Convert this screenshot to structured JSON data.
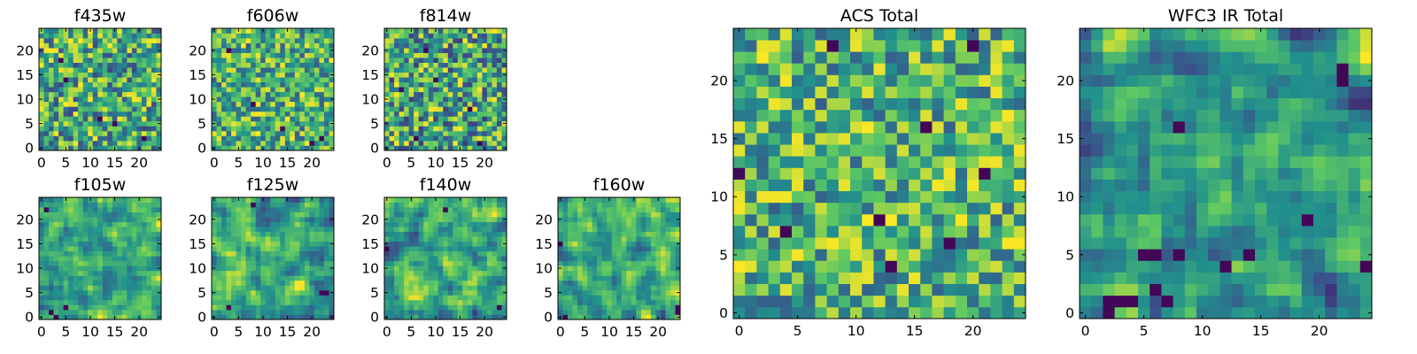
{
  "figure": {
    "colormap_stops": [
      "#440154",
      "#3b528b",
      "#21908d",
      "#5dc863",
      "#fde725"
    ],
    "frame_color": "#000000"
  },
  "chart_data": [
    {
      "type": "heatmap",
      "title": "f435w",
      "grid": false,
      "x_range": [
        0,
        24
      ],
      "y_range": [
        0,
        24
      ],
      "xticks": [
        "0",
        "5",
        "10",
        "15",
        "20"
      ],
      "yticks": [
        "0",
        "5",
        "10",
        "15",
        "20"
      ],
      "grid_size": 25,
      "seed": 11,
      "smooth": 0,
      "value_range": [
        0.22,
        1.0
      ],
      "dark_cells": [
        [
          4,
          18
        ],
        [
          12,
          6
        ],
        [
          15,
          5
        ],
        [
          21,
          2
        ],
        [
          5,
          14
        ]
      ]
    },
    {
      "type": "heatmap",
      "title": "f606w",
      "grid": false,
      "x_range": [
        0,
        24
      ],
      "y_range": [
        0,
        24
      ],
      "xticks": [
        "0",
        "5",
        "10",
        "15",
        "20"
      ],
      "yticks": [
        "0",
        "5",
        "10",
        "15",
        "20"
      ],
      "grid_size": 25,
      "seed": 23,
      "smooth": 0,
      "value_range": [
        0.3,
        1.0
      ],
      "dark_cells": [
        [
          20,
          1
        ],
        [
          22,
          2
        ],
        [
          8,
          9
        ],
        [
          14,
          4
        ],
        [
          3,
          20
        ]
      ]
    },
    {
      "type": "heatmap",
      "title": "f814w",
      "grid": false,
      "x_range": [
        0,
        24
      ],
      "y_range": [
        0,
        24
      ],
      "xticks": [
        "0",
        "5",
        "10",
        "15",
        "20"
      ],
      "yticks": [
        "0",
        "5",
        "10",
        "15",
        "20"
      ],
      "grid_size": 25,
      "seed": 37,
      "smooth": 0,
      "value_range": [
        0.18,
        1.0
      ],
      "dark_cells": [
        [
          6,
          2
        ],
        [
          3,
          12
        ],
        [
          10,
          14
        ],
        [
          19,
          1
        ],
        [
          8,
          20
        ],
        [
          17,
          8
        ]
      ]
    },
    {
      "type": "heatmap",
      "title": "f105w",
      "grid": false,
      "x_range": [
        0,
        24
      ],
      "y_range": [
        0,
        24
      ],
      "xticks": [
        "0",
        "5",
        "10",
        "15",
        "20"
      ],
      "yticks": [
        "0",
        "5",
        "10",
        "15",
        "20"
      ],
      "grid_size": 25,
      "seed": 41,
      "smooth": 1,
      "value_range": [
        0.28,
        1.0
      ],
      "dark_cells": [
        [
          1,
          22
        ],
        [
          2,
          1
        ],
        [
          3,
          0
        ],
        [
          5,
          2
        ]
      ]
    },
    {
      "type": "heatmap",
      "title": "f125w",
      "grid": false,
      "x_range": [
        0,
        24
      ],
      "y_range": [
        0,
        24
      ],
      "xticks": [
        "0",
        "5",
        "10",
        "15",
        "20"
      ],
      "yticks": [
        "0",
        "5",
        "10",
        "15",
        "20"
      ],
      "grid_size": 25,
      "seed": 53,
      "smooth": 1,
      "value_range": [
        0.15,
        1.0
      ],
      "dark_cells": [
        [
          22,
          5
        ],
        [
          23,
          5
        ],
        [
          3,
          2
        ],
        [
          8,
          23
        ]
      ]
    },
    {
      "type": "heatmap",
      "title": "f140w",
      "grid": false,
      "x_range": [
        0,
        24
      ],
      "y_range": [
        0,
        24
      ],
      "xticks": [
        "0",
        "5",
        "10",
        "15",
        "20"
      ],
      "yticks": [
        "0",
        "5",
        "10",
        "15",
        "20"
      ],
      "grid_size": 25,
      "seed": 67,
      "smooth": 1,
      "value_range": [
        0.18,
        1.0
      ],
      "dark_cells": [
        [
          0,
          14
        ],
        [
          23,
          2
        ],
        [
          12,
          22
        ]
      ]
    },
    {
      "type": "heatmap",
      "title": "f160w",
      "grid": false,
      "x_range": [
        0,
        24
      ],
      "y_range": [
        0,
        24
      ],
      "xticks": [
        "0",
        "5",
        "10",
        "15",
        "20"
      ],
      "yticks": [
        "0",
        "5",
        "10",
        "15",
        "20"
      ],
      "grid_size": 25,
      "seed": 79,
      "smooth": 1,
      "value_range": [
        0.2,
        1.0
      ],
      "dark_cells": [
        [
          24,
          1
        ],
        [
          24,
          2
        ],
        [
          1,
          0
        ],
        [
          0,
          15
        ]
      ]
    },
    {
      "type": "heatmap",
      "title": "ACS Total",
      "grid": false,
      "x_range": [
        0,
        24
      ],
      "y_range": [
        0,
        24
      ],
      "xticks": [
        "0",
        "5",
        "10",
        "15",
        "20"
      ],
      "yticks": [
        "0",
        "5",
        "10",
        "15",
        "20"
      ],
      "grid_size": 25,
      "seed": 97,
      "smooth": 0,
      "value_range": [
        0.3,
        1.0
      ],
      "dark_cells": [
        [
          0,
          12
        ],
        [
          4,
          7
        ],
        [
          12,
          8
        ],
        [
          13,
          4
        ],
        [
          16,
          16
        ],
        [
          18,
          6
        ],
        [
          21,
          12
        ],
        [
          20,
          23
        ],
        [
          8,
          23
        ]
      ]
    },
    {
      "type": "heatmap",
      "title": "WFC3 IR Total",
      "grid": false,
      "x_range": [
        0,
        24
      ],
      "y_range": [
        0,
        24
      ],
      "xticks": [
        "0",
        "5",
        "10",
        "15",
        "20"
      ],
      "yticks": [
        "0",
        "5",
        "10",
        "15",
        "20"
      ],
      "grid_size": 25,
      "seed": 113,
      "smooth": 1,
      "value_range": [
        0.15,
        1.0
      ],
      "dark_cells": [
        [
          2,
          1
        ],
        [
          3,
          1
        ],
        [
          4,
          1
        ],
        [
          2,
          0
        ],
        [
          6,
          2
        ],
        [
          7,
          1
        ],
        [
          5,
          5
        ],
        [
          6,
          5
        ],
        [
          8,
          5
        ],
        [
          12,
          4
        ],
        [
          14,
          5
        ],
        [
          24,
          4
        ],
        [
          19,
          8
        ],
        [
          8,
          16
        ],
        [
          22,
          20
        ],
        [
          22,
          21
        ]
      ]
    }
  ]
}
